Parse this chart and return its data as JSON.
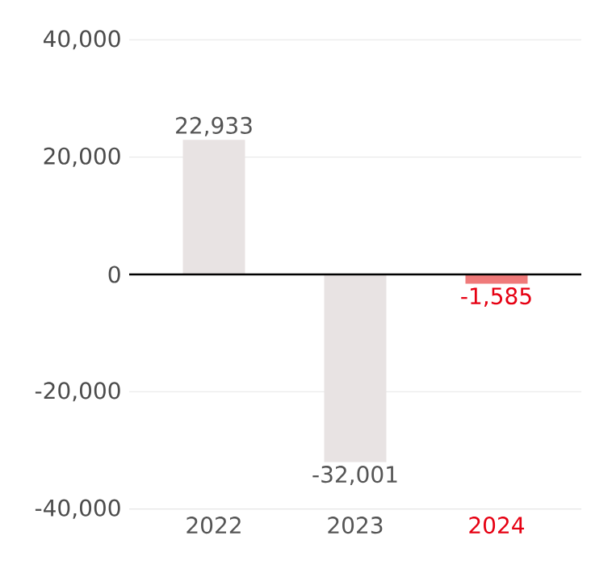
{
  "chart_data": {
    "type": "bar",
    "categories": [
      "2022",
      "2023",
      "2024"
    ],
    "values": [
      22933,
      -32001,
      -1585
    ],
    "colors": [
      "#e8e3e3",
      "#e8e3e3",
      "#ef7a7a"
    ],
    "ylim": [
      -40000,
      40000
    ],
    "yticks": [
      {
        "value": -40000,
        "label": "-40,000"
      },
      {
        "value": -20000,
        "label": "-20,000"
      },
      {
        "value": 0,
        "label": "0"
      },
      {
        "value": 20000,
        "label": "20,000"
      },
      {
        "value": 40000,
        "label": "40,000"
      }
    ],
    "grid": "y",
    "data_labels": true,
    "value_labels": [
      "22,933",
      "-32,001",
      "-1,585"
    ]
  }
}
